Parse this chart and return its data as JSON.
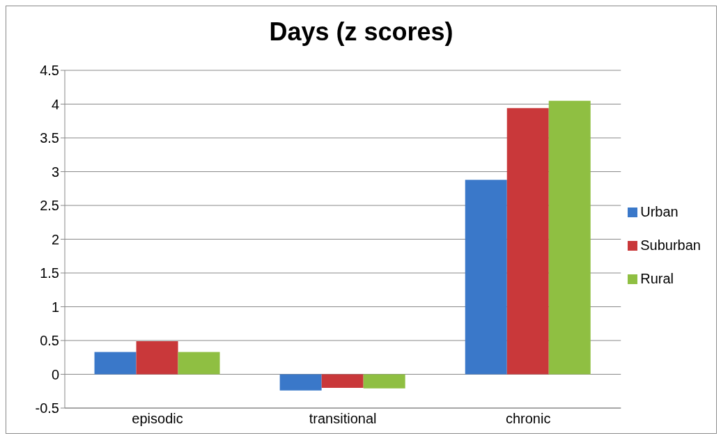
{
  "chart_data": {
    "type": "bar",
    "title": "Days (z scores)",
    "categories": [
      "episodic",
      "transitional",
      "chronic"
    ],
    "series": [
      {
        "name": "Urban",
        "color": "#3a78c9",
        "values": [
          0.33,
          -0.24,
          2.88
        ]
      },
      {
        "name": "Suburban",
        "color": "#c9383a",
        "values": [
          0.49,
          -0.2,
          3.94
        ]
      },
      {
        "name": "Rural",
        "color": "#8fbf42",
        "values": [
          0.33,
          -0.21,
          4.05
        ]
      }
    ],
    "ylim": [
      -0.5,
      4.5
    ],
    "yticks": [
      -0.5,
      0,
      0.5,
      1,
      1.5,
      2,
      2.5,
      3,
      3.5,
      4,
      4.5
    ],
    "grid": "y",
    "legend": "right"
  }
}
